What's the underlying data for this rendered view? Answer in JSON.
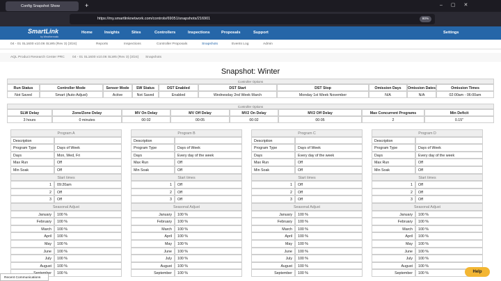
{
  "browser": {
    "tab_title": "Config Snapshot Show",
    "url": "https://my.smartlinknetwork.com/controls/69051/snapshots/216901",
    "zoom": "80%"
  },
  "nav": {
    "logo": "SmartLink",
    "logo_sub": "by Weathermatic",
    "items": [
      "Home",
      "Insights",
      "Sites",
      "Controllers",
      "Inspections",
      "Proposals",
      "Support"
    ],
    "settings": "Settings"
  },
  "subtabs": [
    "04 - 01 SL1600 v10.06 SLW5 (Rev 3) (3/24)",
    "Reports",
    "Inspections",
    "Controller Proposals",
    "Snapshots",
    "Events Log",
    "Admin"
  ],
  "breadcrumb": [
    "AQL Product Research Center PRC",
    "04 - 01 SL1600 v10.06 SLW5 (Rev 3) (3/24)",
    "Snapshots"
  ],
  "title": "Snapshot: Winter",
  "controller_options": {
    "caption": "Controller Options",
    "headers": [
      "Run Status",
      "Controller Mode",
      "Sensor Mode",
      "SW Status",
      "DST Enabled",
      "DST Start",
      "DST Stop",
      "Omission Days",
      "Omission Dates",
      "Omission Times"
    ],
    "values": [
      "Not Saved",
      "Smart (Auto-Adjust)",
      "Active",
      "Not Saved",
      "Enabled",
      "Wednesday 2nd Week March",
      "Monday 1st Week November",
      "N/A",
      "N/A",
      "02:00am - 06:00am"
    ]
  },
  "delays": {
    "caption": "Controller Options",
    "headers": [
      "SLW Delay",
      "Zone/Zone Delay",
      "MV On Delay",
      "MV Off Delay",
      "MV2 On Delay",
      "MV2 Off Delay",
      "Max Concurrent Programs",
      "Min Deficit"
    ],
    "values": [
      "3 hours",
      "0 minutes",
      "00:02",
      "00:05",
      "00:02",
      "00:05",
      "2",
      "0.15\""
    ]
  },
  "program_table": {
    "row_labels": [
      "Description",
      "Program Type",
      "Days",
      "Max Run",
      "Min Soak"
    ],
    "start_times_heading": "Start times",
    "start_numbers": [
      1,
      2,
      3
    ],
    "seasonal_heading": "Seasonal Adjust",
    "months": [
      "January",
      "February",
      "March",
      "April",
      "May",
      "June",
      "July",
      "August",
      "September"
    ]
  },
  "programs": [
    {
      "name": "Program A",
      "values": [
        "Days of Week",
        "Mon, Wed, Fri",
        "Off",
        "Off"
      ],
      "start_times": [
        "09:20am",
        "Off",
        "Off"
      ],
      "seasonal": [
        "100 %",
        "100 %",
        "100 %",
        "100 %",
        "100 %",
        "100 %",
        "100 %",
        "100 %",
        "100 %"
      ]
    },
    {
      "name": "Program B",
      "values": [
        "Days of Week",
        "Every day of the week",
        "Off",
        "Off"
      ],
      "start_times": [
        "Off",
        "Off",
        "Off"
      ],
      "seasonal": [
        "100 %",
        "100 %",
        "100 %",
        "100 %",
        "100 %",
        "100 %",
        "100 %",
        "100 %",
        "100 %"
      ]
    },
    {
      "name": "Program C",
      "values": [
        "Days of Week",
        "Every day of the week",
        "Off",
        "Off"
      ],
      "start_times": [
        "Off",
        "Off",
        "Off"
      ],
      "seasonal": [
        "100 %",
        "100 %",
        "100 %",
        "100 %",
        "100 %",
        "100 %",
        "100 %",
        "100 %",
        "100 %"
      ]
    },
    {
      "name": "Program D",
      "values": [
        "Days of Week",
        "Every day of the week",
        "Off",
        "Off"
      ],
      "start_times": [
        "Off",
        "Off",
        "Off"
      ],
      "seasonal": [
        "100 %",
        "100 %",
        "100 %",
        "100 %",
        "100 %",
        "100 %",
        "100 %",
        "100 %",
        "100 %"
      ]
    }
  ],
  "footer": {
    "recent": "Recent Communications",
    "help": "Help"
  }
}
